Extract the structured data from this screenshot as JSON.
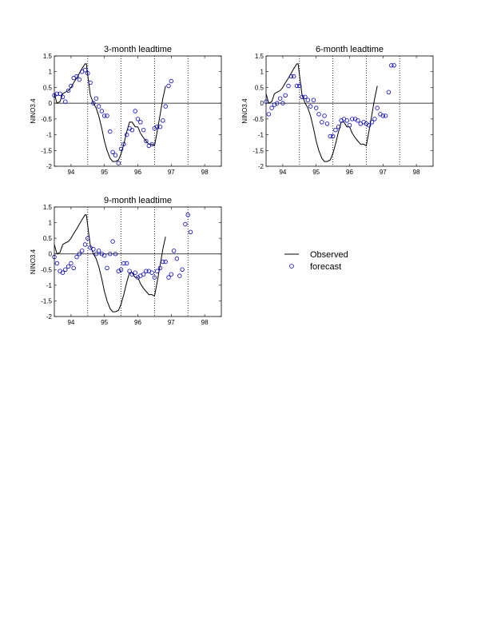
{
  "colors": {
    "observed": "#000000",
    "forecast": "#0000cc"
  },
  "legend": {
    "observed_label": "Observed",
    "forecast_label": "forecast"
  },
  "chart_data": [
    {
      "type": "line",
      "title": "3-month leadtime",
      "ylabel": "NINO3.4",
      "xlabel": "",
      "xlim": [
        1993.5,
        1998.5
      ],
      "ylim": [
        -2,
        1.5
      ],
      "xticks": [
        94,
        95,
        96,
        97,
        98
      ],
      "yticks": [
        "1.5",
        "1",
        "0.5",
        "0",
        "-0.5",
        "-1",
        "-1.5",
        "-2"
      ],
      "vlines": [
        1994.5,
        1995.5,
        1996.5,
        1997.5
      ],
      "observed": {
        "x": [
          1993.5,
          1993.58,
          1993.67,
          1993.75,
          1993.83,
          1993.92,
          1994.0,
          1994.08,
          1994.17,
          1994.25,
          1994.33,
          1994.42,
          1994.46,
          1994.5,
          1994.58,
          1994.67,
          1994.75,
          1994.83,
          1994.92,
          1995.0,
          1995.08,
          1995.17,
          1995.25,
          1995.33,
          1995.42,
          1995.5,
          1995.58,
          1995.67,
          1995.75,
          1995.83,
          1995.92,
          1996.0,
          1996.08,
          1996.17,
          1996.25,
          1996.33,
          1996.42,
          1996.5,
          1996.58,
          1996.67,
          1996.75,
          1996.83
        ],
        "y": [
          0.3,
          0.0,
          0.05,
          0.3,
          0.35,
          0.4,
          0.5,
          0.65,
          0.8,
          0.95,
          1.1,
          1.25,
          1.25,
          0.9,
          0.25,
          0.0,
          -0.15,
          -0.4,
          -0.8,
          -1.2,
          -1.5,
          -1.75,
          -1.85,
          -1.85,
          -1.8,
          -1.6,
          -1.3,
          -0.9,
          -0.6,
          -0.6,
          -0.75,
          -0.75,
          -0.95,
          -1.1,
          -1.2,
          -1.3,
          -1.3,
          -1.35,
          -0.9,
          -0.35,
          0.15,
          0.55
        ]
      },
      "forecast": {
        "x": [
          1993.5,
          1993.58,
          1993.67,
          1993.75,
          1993.83,
          1993.92,
          1994.0,
          1994.08,
          1994.17,
          1994.25,
          1994.33,
          1994.42,
          1994.5,
          1994.58,
          1994.67,
          1994.75,
          1994.83,
          1994.92,
          1995.0,
          1995.08,
          1995.17,
          1995.25,
          1995.33,
          1995.42,
          1995.5,
          1995.58,
          1995.67,
          1995.75,
          1995.83,
          1995.92,
          1996.0,
          1996.08,
          1996.17,
          1996.25,
          1996.33,
          1996.42,
          1996.5,
          1996.58,
          1996.67,
          1996.75,
          1996.83,
          1996.92,
          1997.0
        ],
        "y": [
          0.25,
          0.3,
          0.3,
          0.2,
          0.05,
          0.4,
          0.55,
          0.8,
          0.85,
          0.75,
          1.0,
          1.05,
          0.95,
          0.65,
          0.0,
          0.15,
          -0.1,
          -0.25,
          -0.4,
          -0.4,
          -0.9,
          -1.55,
          -1.65,
          -1.9,
          -1.45,
          -1.3,
          -1.0,
          -0.8,
          -0.85,
          -0.25,
          -0.5,
          -0.6,
          -0.85,
          -1.2,
          -1.35,
          -1.3,
          -0.8,
          -0.75,
          -0.75,
          -0.55,
          -0.1,
          0.55,
          0.7
        ]
      }
    },
    {
      "type": "line",
      "title": "6-month leadtime",
      "ylabel": "NINO3.4",
      "xlabel": "",
      "xlim": [
        1993.5,
        1998.5
      ],
      "ylim": [
        -2,
        1.5
      ],
      "xticks": [
        94,
        95,
        96,
        97,
        98
      ],
      "yticks": [
        "1.5",
        "1",
        "0.5",
        "0",
        "-0.5",
        "-1",
        "-1.5",
        "-2"
      ],
      "vlines": [
        1994.5,
        1995.5,
        1996.5,
        1997.5
      ],
      "observed": {
        "x": [
          1993.5,
          1993.58,
          1993.67,
          1993.75,
          1993.83,
          1993.92,
          1994.0,
          1994.08,
          1994.17,
          1994.25,
          1994.33,
          1994.42,
          1994.46,
          1994.5,
          1994.58,
          1994.67,
          1994.75,
          1994.83,
          1994.92,
          1995.0,
          1995.08,
          1995.17,
          1995.25,
          1995.33,
          1995.42,
          1995.5,
          1995.58,
          1995.67,
          1995.75,
          1995.83,
          1995.92,
          1996.0,
          1996.08,
          1996.17,
          1996.25,
          1996.33,
          1996.42,
          1996.5,
          1996.58,
          1996.67,
          1996.75,
          1996.83
        ],
        "y": [
          0.3,
          0.0,
          0.05,
          0.3,
          0.35,
          0.4,
          0.5,
          0.65,
          0.8,
          0.95,
          1.1,
          1.25,
          1.25,
          0.9,
          0.25,
          0.0,
          -0.15,
          -0.4,
          -0.8,
          -1.2,
          -1.5,
          -1.75,
          -1.85,
          -1.85,
          -1.8,
          -1.6,
          -1.3,
          -0.9,
          -0.6,
          -0.6,
          -0.75,
          -0.75,
          -0.95,
          -1.1,
          -1.2,
          -1.3,
          -1.3,
          -1.35,
          -0.9,
          -0.35,
          0.15,
          0.55
        ]
      },
      "forecast": {
        "x": [
          1993.5,
          1993.58,
          1993.67,
          1993.75,
          1993.83,
          1993.92,
          1994.0,
          1994.08,
          1994.17,
          1994.25,
          1994.33,
          1994.42,
          1994.5,
          1994.58,
          1994.67,
          1994.75,
          1994.83,
          1994.92,
          1995.0,
          1995.08,
          1995.17,
          1995.25,
          1995.33,
          1995.42,
          1995.5,
          1995.58,
          1995.67,
          1995.75,
          1995.83,
          1995.92,
          1996.0,
          1996.08,
          1996.17,
          1996.25,
          1996.33,
          1996.42,
          1996.5,
          1996.58,
          1996.67,
          1996.75,
          1996.83,
          1996.92,
          1997.0,
          1997.08,
          1997.17,
          1997.25,
          1997.33
        ],
        "y": [
          0.05,
          -0.35,
          -0.15,
          -0.05,
          0.0,
          0.15,
          0.0,
          0.25,
          0.55,
          0.85,
          0.85,
          0.55,
          0.55,
          0.2,
          0.2,
          0.1,
          -0.1,
          0.1,
          -0.15,
          -0.35,
          -0.6,
          -0.4,
          -0.65,
          -1.05,
          -1.05,
          -0.85,
          -0.75,
          -0.55,
          -0.5,
          -0.55,
          -0.7,
          -0.5,
          -0.5,
          -0.55,
          -0.65,
          -0.6,
          -0.65,
          -0.7,
          -0.6,
          -0.5,
          -0.15,
          -0.35,
          -0.4,
          -0.4,
          0.35,
          1.2,
          1.2
        ]
      }
    },
    {
      "type": "line",
      "title": "9-month leadtime",
      "ylabel": "NINO3.4",
      "xlabel": "",
      "xlim": [
        1993.5,
        1998.5
      ],
      "ylim": [
        -2,
        1.5
      ],
      "xticks": [
        94,
        95,
        96,
        97,
        98
      ],
      "yticks": [
        "1.5",
        "1",
        "0.5",
        "0",
        "-0.5",
        "-1",
        "-1.5",
        "-2"
      ],
      "vlines": [
        1994.5,
        1995.5,
        1996.5,
        1997.5
      ],
      "observed": {
        "x": [
          1993.5,
          1993.58,
          1993.67,
          1993.75,
          1993.83,
          1993.92,
          1994.0,
          1994.08,
          1994.17,
          1994.25,
          1994.33,
          1994.42,
          1994.46,
          1994.5,
          1994.58,
          1994.67,
          1994.75,
          1994.83,
          1994.92,
          1995.0,
          1995.08,
          1995.17,
          1995.25,
          1995.33,
          1995.42,
          1995.5,
          1995.58,
          1995.67,
          1995.75,
          1995.83,
          1995.92,
          1996.0,
          1996.08,
          1996.17,
          1996.25,
          1996.33,
          1996.42,
          1996.5,
          1996.58,
          1996.67,
          1996.75,
          1996.83
        ],
        "y": [
          0.3,
          0.0,
          0.05,
          0.3,
          0.35,
          0.4,
          0.5,
          0.65,
          0.8,
          0.95,
          1.1,
          1.25,
          1.25,
          0.9,
          0.25,
          0.0,
          -0.15,
          -0.4,
          -0.8,
          -1.2,
          -1.5,
          -1.75,
          -1.85,
          -1.85,
          -1.8,
          -1.6,
          -1.3,
          -0.9,
          -0.6,
          -0.6,
          -0.75,
          -0.75,
          -0.95,
          -1.1,
          -1.2,
          -1.3,
          -1.3,
          -1.35,
          -0.9,
          -0.35,
          0.15,
          0.55
        ]
      },
      "forecast": {
        "x": [
          1993.5,
          1993.58,
          1993.67,
          1993.75,
          1993.83,
          1993.92,
          1994.0,
          1994.08,
          1994.17,
          1994.25,
          1994.33,
          1994.42,
          1994.5,
          1994.58,
          1994.67,
          1994.75,
          1994.83,
          1994.92,
          1995.0,
          1995.08,
          1995.17,
          1995.25,
          1995.33,
          1995.42,
          1995.5,
          1995.58,
          1995.67,
          1995.75,
          1995.83,
          1995.92,
          1996.0,
          1996.08,
          1996.17,
          1996.25,
          1996.33,
          1996.42,
          1996.5,
          1996.58,
          1996.67,
          1996.75,
          1996.83,
          1996.92,
          1997.0,
          1997.08,
          1997.17,
          1997.25,
          1997.33,
          1997.42,
          1997.5,
          1997.58
        ],
        "y": [
          -0.1,
          -0.3,
          -0.55,
          -0.6,
          -0.5,
          -0.4,
          -0.3,
          -0.45,
          -0.1,
          0.0,
          0.1,
          0.3,
          0.5,
          0.2,
          0.15,
          0.0,
          0.1,
          0.0,
          -0.05,
          -0.45,
          0.0,
          0.4,
          0.0,
          -0.55,
          -0.5,
          -0.3,
          -0.3,
          -0.55,
          -0.65,
          -0.6,
          -0.75,
          -0.7,
          -0.65,
          -0.55,
          -0.55,
          -0.6,
          -0.75,
          -0.55,
          -0.45,
          -0.25,
          -0.25,
          -0.75,
          -0.65,
          0.1,
          -0.15,
          -0.7,
          -0.5,
          0.95,
          1.25,
          0.7
        ]
      }
    }
  ]
}
